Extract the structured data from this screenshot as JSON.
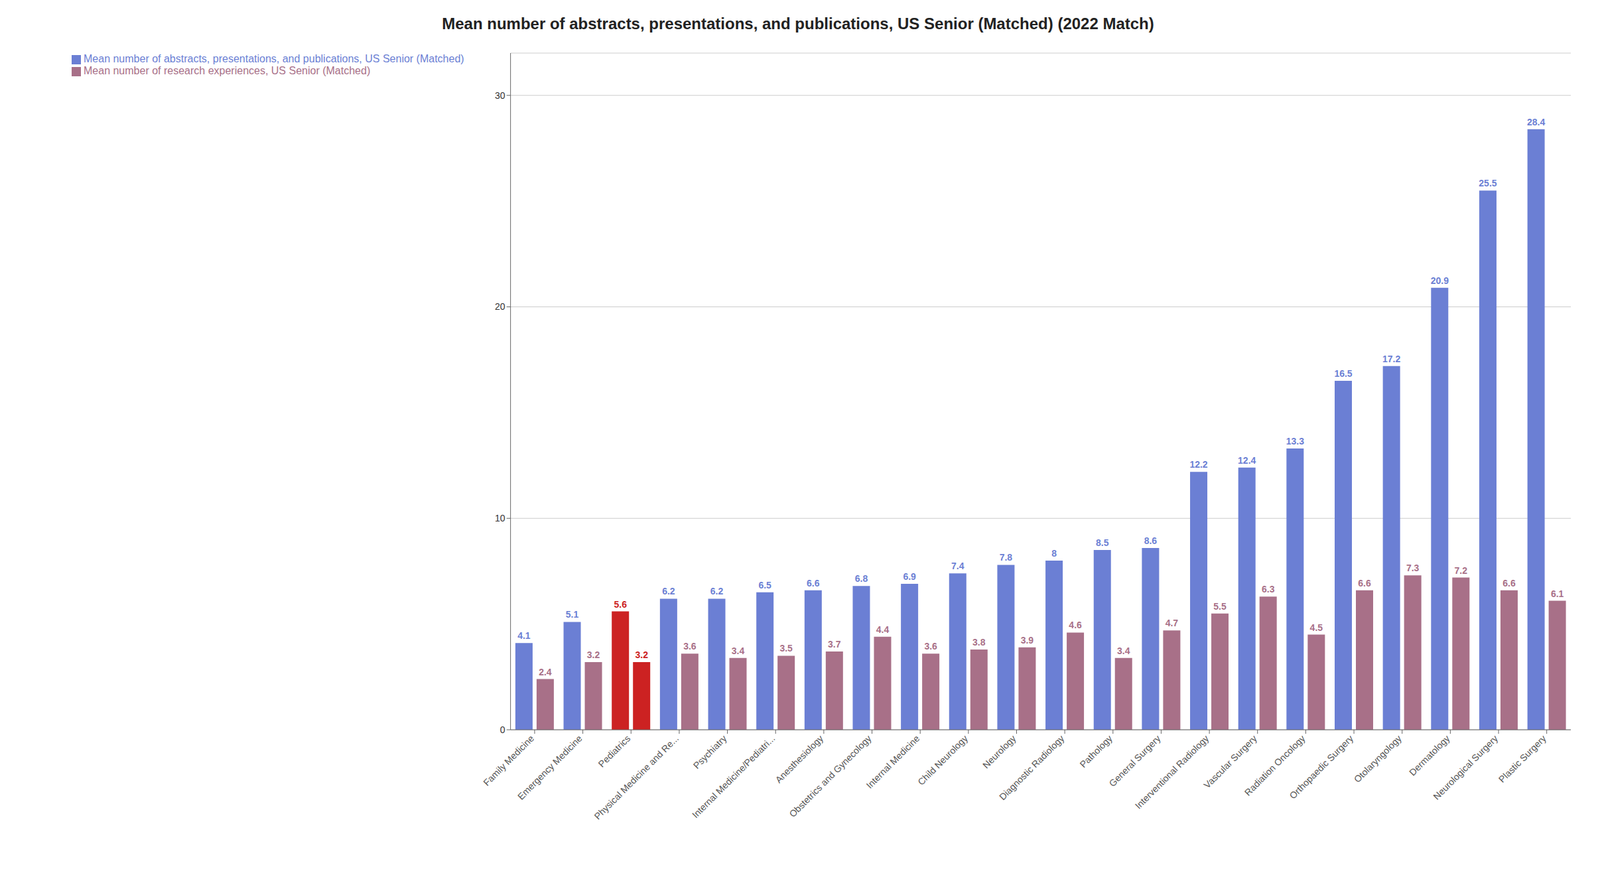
{
  "chart_data": {
    "type": "bar",
    "title": "Mean number of abstracts, presentations, and publications, US Senior (Matched) (2022 Match)",
    "categories": [
      "Family Medicine",
      "Emergency Medicine",
      "Pediatrics",
      "Physical Medicine and Re...",
      "Psychiatry",
      "Internal Medicine/Pediatri...",
      "Anesthesiology",
      "Obstetrics and Gynecology",
      "Internal Medicine",
      "Child Neurology",
      "Neurology",
      "Diagnostic Radiology",
      "Pathology",
      "General Surgery",
      "Interventional Radiology",
      "Vascular Surgery",
      "Radiation Oncology",
      "Orthopaedic Surgery",
      "Otolaryngology",
      "Dermatology",
      "Neurological Surgery",
      "Plastic Surgery"
    ],
    "series": [
      {
        "name": "Mean number of abstracts, presentations, and publications, US Senior (Matched)",
        "color": "#6B7FD4",
        "colors": [
          "#6B7FD4",
          "#6B7FD4",
          "#CC2222",
          "#6B7FD4",
          "#6B7FD4",
          "#6B7FD4",
          "#6B7FD4",
          "#6B7FD4",
          "#6B7FD4",
          "#6B7FD4",
          "#6B7FD4",
          "#6B7FD4",
          "#6B7FD4",
          "#6B7FD4",
          "#6B7FD4",
          "#6B7FD4",
          "#6B7FD4",
          "#6B7FD4",
          "#6B7FD4",
          "#6B7FD4",
          "#6B7FD4",
          "#6B7FD4"
        ],
        "values": [
          4.1,
          5.1,
          5.6,
          6.2,
          6.2,
          6.5,
          6.6,
          6.8,
          6.9,
          7.4,
          7.8,
          8.0,
          8.5,
          8.6,
          12.2,
          12.4,
          13.3,
          16.5,
          17.2,
          20.9,
          25.5,
          28.4
        ]
      },
      {
        "name": "Mean number of research experiences, US Senior (Matched)",
        "color": "#A87088",
        "colors": [
          "#A87088",
          "#A87088",
          "#CC2222",
          "#A87088",
          "#A87088",
          "#A87088",
          "#A87088",
          "#A87088",
          "#A87088",
          "#A87088",
          "#A87088",
          "#A87088",
          "#A87088",
          "#A87088",
          "#A87088",
          "#A87088",
          "#A87088",
          "#A87088",
          "#A87088",
          "#A87088",
          "#A87088",
          "#A87088"
        ],
        "values": [
          2.4,
          3.2,
          3.2,
          3.6,
          3.4,
          3.5,
          3.7,
          4.4,
          3.6,
          3.8,
          3.9,
          4.6,
          3.4,
          4.7,
          5.5,
          6.3,
          4.5,
          6.6,
          7.3,
          7.2,
          6.6,
          6.1
        ]
      }
    ],
    "ylim": [
      0,
      32
    ],
    "yticks": [
      0,
      10,
      20,
      30
    ],
    "grid": true,
    "legend": "upper left",
    "data_labels": true
  }
}
